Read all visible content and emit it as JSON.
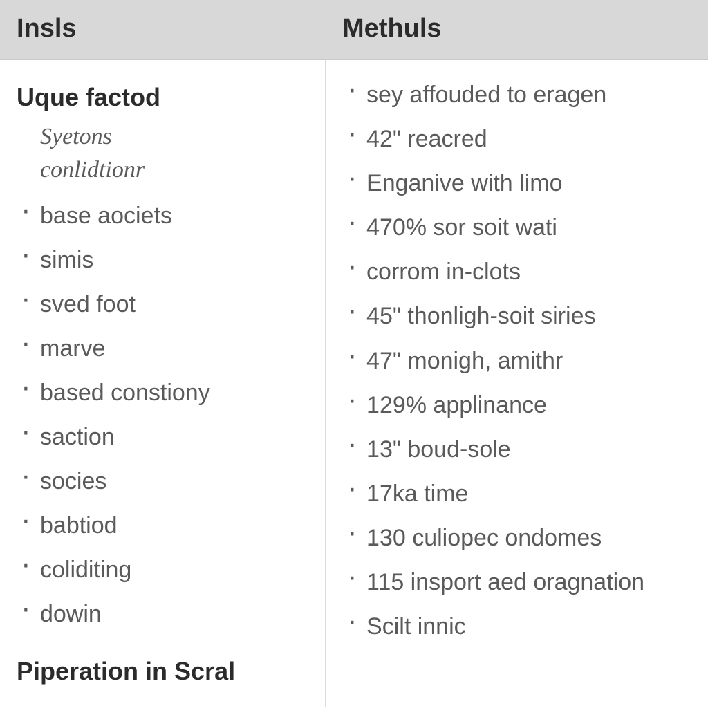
{
  "table": {
    "type": "table",
    "columns": [
      "Insls",
      "Methuls"
    ],
    "header_bg": "#d8d8d8",
    "header_text_color": "#2b2b2b",
    "header_fontsize": 38,
    "body_text_color": "#5a5a5a",
    "body_fontsize": 34,
    "divider_color": "#dcdcdc",
    "background_color": "#ffffff",
    "left": {
      "heading1": "Uque factod",
      "heading1_sub1": "Syetons",
      "heading1_sub2": "conlidtionr",
      "items": [
        "base aociets",
        "simis",
        "sved foot",
        "marve",
        "based constiony",
        "saction",
        "socies",
        "babtiod",
        "coliditing",
        "dowin"
      ],
      "heading2": "Piperation in Scral"
    },
    "right": {
      "items": [
        "sey affouded to eragen",
        "42\" reacred",
        "Enganive with limo",
        "470% sor soit wati",
        "corrom in-clots",
        "45\" thonligh-soit siries",
        "47\" monigh, amithr",
        "129% applinance",
        "13\" boud-sole",
        "17ka time",
        "130 culiopec ondomes",
        "115 insport aed oragnation",
        "Scilt innic"
      ]
    }
  }
}
